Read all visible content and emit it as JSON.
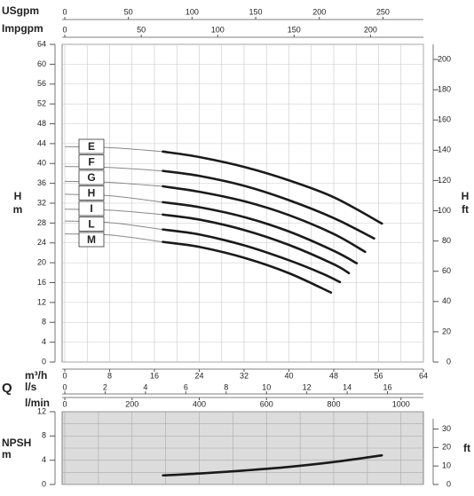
{
  "chart_data": [
    {
      "type": "line",
      "flow_label": "Q",
      "x_label": "m³/h",
      "xlim": [
        0,
        64
      ],
      "xticks": [
        0,
        8,
        16,
        24,
        32,
        40,
        48,
        56,
        64
      ],
      "top_axes": [
        {
          "label": "USgpm",
          "lim": [
            0,
            281.8
          ],
          "ticks": [
            0,
            50,
            100,
            150,
            200,
            250
          ]
        },
        {
          "label": "Impgpm",
          "lim": [
            0,
            234.6
          ],
          "ticks": [
            0,
            50,
            100,
            150,
            200
          ]
        }
      ],
      "bottom_axes": [
        {
          "label": "l/s",
          "lim": [
            0,
            17.78
          ],
          "ticks": [
            0,
            2,
            4,
            6,
            8,
            10,
            12,
            14,
            16
          ]
        }
      ],
      "y_label": "H",
      "y_unit": "m",
      "ylim": [
        0,
        64
      ],
      "yticks": [
        0,
        4,
        8,
        12,
        16,
        20,
        24,
        28,
        32,
        36,
        40,
        44,
        48,
        52,
        56,
        60,
        64
      ],
      "y2_label": "H",
      "y2_unit": "ft",
      "y2lim": [
        0,
        210
      ],
      "y2ticks": [
        0,
        20,
        40,
        60,
        80,
        100,
        120,
        140,
        160,
        180,
        200
      ],
      "grid": true,
      "series": [
        {
          "name": "E",
          "color": "#1a1a1a",
          "x": [
            0,
            8,
            17.5,
            24,
            32,
            40,
            48,
            56.6
          ],
          "values": [
            43.4,
            43.2,
            42.4,
            41.3,
            39.3,
            36.6,
            33.2,
            27.9
          ]
        },
        {
          "name": "F",
          "color": "#1a1a1a",
          "x": [
            0,
            8,
            17.5,
            24,
            32,
            40,
            48,
            55.2
          ],
          "values": [
            39.4,
            39.2,
            38.5,
            37.5,
            35.5,
            32.6,
            29,
            24.9
          ]
        },
        {
          "name": "G",
          "color": "#1a1a1a",
          "x": [
            0,
            8,
            17.5,
            24,
            32,
            40,
            48,
            53.6
          ],
          "values": [
            36.4,
            36.2,
            35.4,
            34.3,
            32.4,
            29.6,
            25.8,
            22.2
          ]
        },
        {
          "name": "H",
          "color": "#1a1a1a",
          "x": [
            0,
            8,
            17.5,
            24,
            32,
            40,
            48,
            52.1
          ],
          "values": [
            33.8,
            33.5,
            32.2,
            31.2,
            29.2,
            26.3,
            22.4,
            19.9
          ]
        },
        {
          "name": "I",
          "color": "#1a1a1a",
          "x": [
            0,
            8,
            17.5,
            24,
            32,
            40,
            48,
            50.7
          ],
          "values": [
            30.8,
            30.6,
            29.7,
            28.7,
            26.6,
            23.6,
            19.7,
            17.9
          ]
        },
        {
          "name": "L",
          "color": "#1a1a1a",
          "x": [
            0,
            8,
            17.5,
            24,
            32,
            40,
            46,
            49.1
          ],
          "values": [
            28.4,
            28.1,
            26.7,
            25.7,
            23.5,
            20.5,
            17.8,
            16.1
          ]
        },
        {
          "name": "M",
          "color": "#1a1a1a",
          "x": [
            0,
            8,
            17.5,
            24,
            32,
            40,
            47.5
          ],
          "values": [
            25.8,
            25.6,
            24.2,
            23.2,
            21,
            17.9,
            14
          ]
        }
      ]
    },
    {
      "type": "line",
      "x_label": "l/min",
      "xlim": [
        0,
        1066.7
      ],
      "xticks": [
        0,
        200,
        400,
        600,
        800,
        1000
      ],
      "y_label": "NPSH",
      "y_unit": "m",
      "ylim": [
        0,
        12
      ],
      "yticks": [
        0,
        4,
        8,
        12
      ],
      "y2_unit": "ft",
      "y2lim": [
        0,
        39.37
      ],
      "y2ticks": [
        0,
        10,
        20,
        30
      ],
      "grid": true,
      "background": "#dcdcdc",
      "series": [
        {
          "name": "NPSH",
          "color": "#1a1a1a",
          "x": [
            292,
            400,
            533,
            667,
            800,
            943
          ],
          "values": [
            1.5,
            1.8,
            2.3,
            2.9,
            3.7,
            4.8
          ]
        }
      ]
    }
  ]
}
